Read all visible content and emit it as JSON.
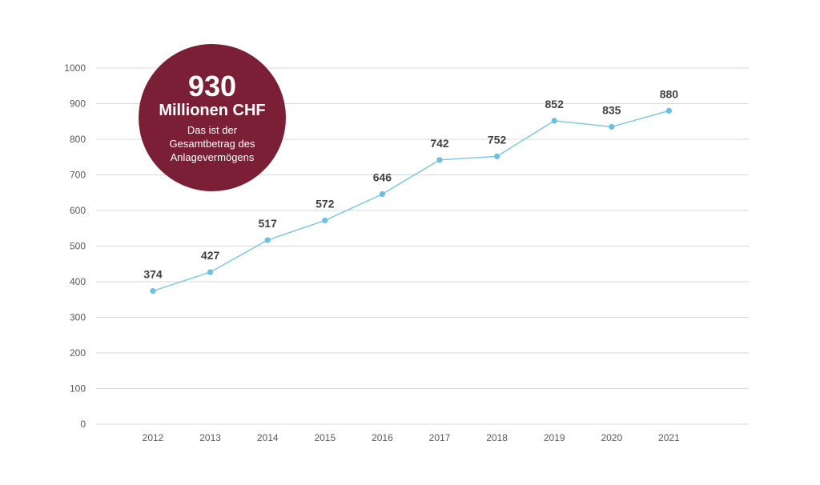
{
  "colors": {
    "line": "#7ec8e3",
    "marker": "#6cc0df",
    "grid": "#d9d9d9",
    "badge": "#7a1f35"
  },
  "badge": {
    "value": "930",
    "unit": "Millionen CHF",
    "lines": [
      "Das ist der",
      "Gesamtbetrag des",
      "Anlagevermögens"
    ]
  },
  "chart_data": {
    "type": "line",
    "title": "",
    "xlabel": "",
    "ylabel": "",
    "categories": [
      "2012",
      "2013",
      "2014",
      "2015",
      "2016",
      "2017",
      "2018",
      "2019",
      "2020",
      "2021"
    ],
    "series": [
      {
        "values": [
          374,
          427,
          517,
          572,
          646,
          742,
          752,
          852,
          835,
          880
        ]
      }
    ],
    "ylim": [
      0,
      1000
    ],
    "yticks": [
      0,
      100,
      200,
      300,
      400,
      500,
      600,
      700,
      800,
      900,
      1000
    ],
    "grid": true,
    "legend": "none"
  }
}
